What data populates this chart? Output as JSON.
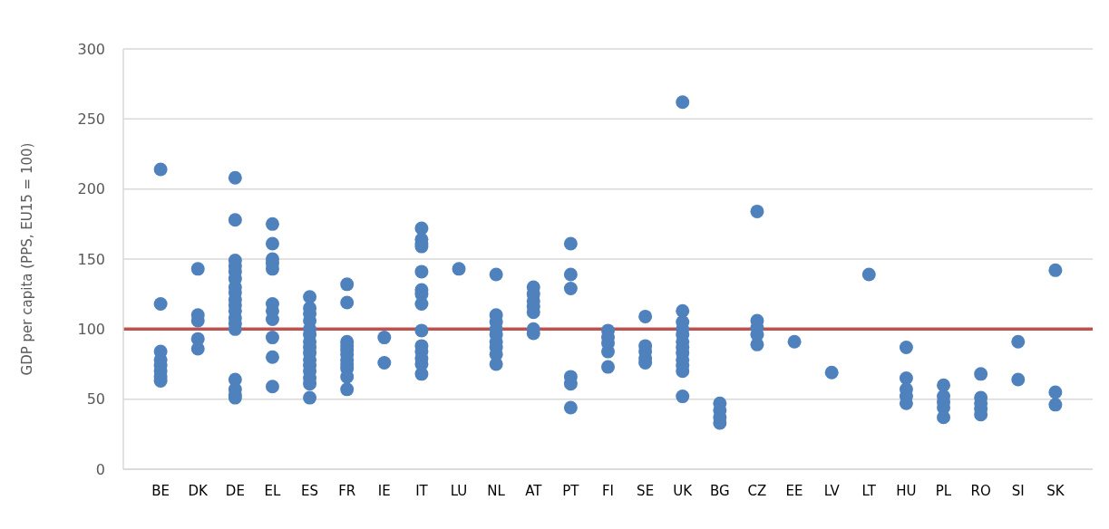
{
  "chart_data": {
    "type": "scatter",
    "ylabel": "GDP per capita (PPS, EU15 = 100)",
    "categories": [
      "BE",
      "DK",
      "DE",
      "EL",
      "ES",
      "FR",
      "IE",
      "IT",
      "LU",
      "NL",
      "AT",
      "PT",
      "FI",
      "SE",
      "UK",
      "BG",
      "CZ",
      "EE",
      "LV",
      "LT",
      "HU",
      "PL",
      "RO",
      "SI",
      "SK"
    ],
    "series": [
      {
        "color": "#4f81bd",
        "x": [
          "BE",
          "BE",
          "BE",
          "BE",
          "BE",
          "BE",
          "BE",
          "BE",
          "DK",
          "DK",
          "DK",
          "DK",
          "DK",
          "DE",
          "DE",
          "DE",
          "DE",
          "DE",
          "DE",
          "DE",
          "DE",
          "DE",
          "DE",
          "DE",
          "DE",
          "DE",
          "DE",
          "DE",
          "DE",
          "DE",
          "DE",
          "EL",
          "EL",
          "EL",
          "EL",
          "EL",
          "EL",
          "EL",
          "EL",
          "EL",
          "EL",
          "EL",
          "ES",
          "ES",
          "ES",
          "ES",
          "ES",
          "ES",
          "ES",
          "ES",
          "ES",
          "ES",
          "ES",
          "ES",
          "ES",
          "ES",
          "ES",
          "FR",
          "FR",
          "FR",
          "FR",
          "FR",
          "FR",
          "FR",
          "FR",
          "FR",
          "FR",
          "FR",
          "IE",
          "IE",
          "IT",
          "IT",
          "IT",
          "IT",
          "IT",
          "IT",
          "IT",
          "IT",
          "IT",
          "IT",
          "IT",
          "IT",
          "IT",
          "IT",
          "LU",
          "NL",
          "NL",
          "NL",
          "NL",
          "NL",
          "NL",
          "NL",
          "NL",
          "NL",
          "AT",
          "AT",
          "AT",
          "AT",
          "AT",
          "AT",
          "AT",
          "PT",
          "PT",
          "PT",
          "PT",
          "PT",
          "PT",
          "FI",
          "FI",
          "FI",
          "FI",
          "FI",
          "SE",
          "SE",
          "SE",
          "SE",
          "SE",
          "UK",
          "UK",
          "UK",
          "UK",
          "UK",
          "UK",
          "UK",
          "UK",
          "UK",
          "UK",
          "UK",
          "UK",
          "BG",
          "BG",
          "BG",
          "BG",
          "CZ",
          "CZ",
          "CZ",
          "CZ",
          "CZ",
          "EE",
          "LV",
          "LT",
          "HU",
          "HU",
          "HU",
          "HU",
          "HU",
          "PL",
          "PL",
          "PL",
          "PL",
          "PL",
          "RO",
          "RO",
          "RO",
          "RO",
          "RO",
          "SI",
          "SI",
          "SK",
          "SK",
          "SK"
        ],
        "values": [
          214,
          118,
          84,
          78,
          74,
          70,
          66,
          63,
          143,
          110,
          106,
          93,
          86,
          208,
          178,
          149,
          145,
          141,
          136,
          130,
          126,
          121,
          117,
          113,
          108,
          104,
          100,
          64,
          57,
          53,
          51,
          175,
          161,
          150,
          147,
          143,
          118,
          113,
          107,
          94,
          80,
          59,
          123,
          115,
          111,
          106,
          100,
          96,
          91,
          87,
          83,
          78,
          74,
          70,
          65,
          61,
          51,
          132,
          119,
          91,
          88,
          85,
          82,
          78,
          75,
          72,
          66,
          57,
          94,
          76,
          172,
          164,
          161,
          159,
          141,
          128,
          125,
          118,
          99,
          88,
          84,
          79,
          75,
          68,
          143,
          139,
          110,
          105,
          100,
          96,
          91,
          87,
          82,
          75,
          130,
          125,
          120,
          116,
          112,
          100,
          97,
          161,
          139,
          129,
          66,
          61,
          44,
          99,
          94,
          90,
          84,
          73,
          109,
          88,
          84,
          79,
          76,
          262,
          113,
          105,
          100,
          96,
          91,
          87,
          83,
          78,
          74,
          70,
          52,
          47,
          42,
          37,
          33,
          184,
          106,
          101,
          96,
          89,
          91,
          69,
          139,
          87,
          65,
          57,
          52,
          47,
          60,
          52,
          48,
          44,
          37,
          68,
          51,
          47,
          43,
          39,
          91,
          64,
          142,
          55,
          46
        ]
      }
    ],
    "ylim": [
      0,
      300
    ],
    "yticks": [
      0,
      50,
      100,
      150,
      200,
      250,
      300
    ],
    "grid": "y",
    "marker": "circle",
    "ref_lines": [
      {
        "axis": "y",
        "value": 100,
        "color": "#c0504d"
      }
    ]
  }
}
